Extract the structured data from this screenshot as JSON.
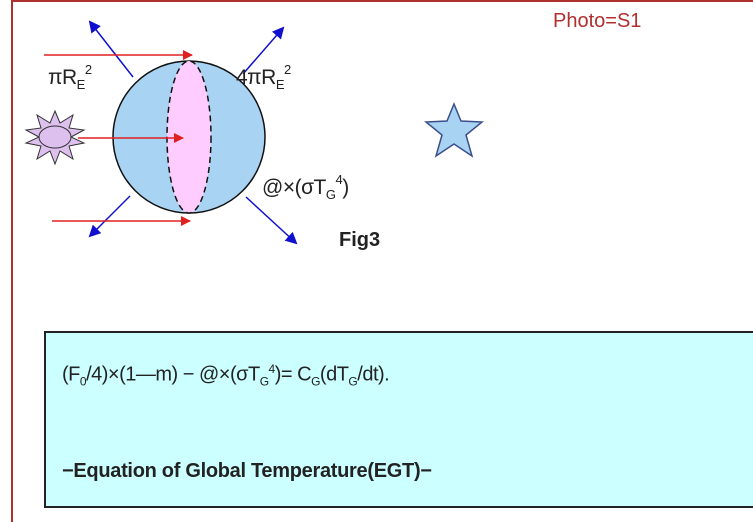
{
  "photo_label": "Photo=S1",
  "figure_label": "Fig3",
  "labels": {
    "area_left": {
      "pi": "π",
      "R": "R",
      "sub": "E",
      "sup": "2"
    },
    "area_right": {
      "coef": "4πR",
      "sub": "E",
      "sup": "2"
    },
    "emission": {
      "pre": "@×(σT",
      "sub": "G",
      "sup": "4",
      "post": ")"
    }
  },
  "equation": {
    "p1": "(F",
    "s1": "0",
    "p2": "/4)×(1—m) − @×(σT",
    "s2": "G",
    "s3": "4",
    "p3": ")= C",
    "s4": "G",
    "p4": "(dT",
    "s5": "G",
    "p5": "/dt)."
  },
  "equation_caption": "−Equation of Global Temperature(EGT)−",
  "colors": {
    "frame": "#b03030",
    "sphere": "#a9d3f2",
    "hemisphere": "#ffccff",
    "incoming_arrow": "#e02020",
    "outgoing_arrow": "#1010d0",
    "sun": "#ddc0ee",
    "star": "#a9d3f2",
    "equation_box": "#ccffff"
  }
}
